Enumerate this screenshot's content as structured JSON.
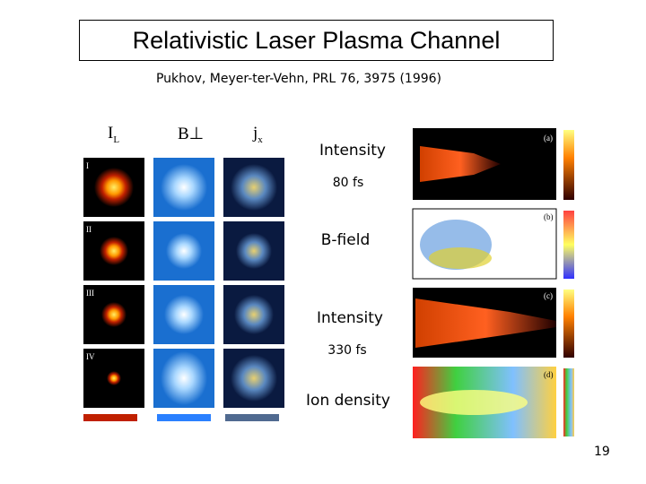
{
  "title": "Relativistic Laser Plasma Channel",
  "citation": "Pukhov, Meyer-ter-Vehn, PRL 76, 3975 (1996)",
  "column_labels": [
    {
      "main": "I",
      "sub": "L"
    },
    {
      "main": "B⊥"
    },
    {
      "main": "j",
      "sub": "x"
    }
  ],
  "annotations": [
    "Intensity",
    "80 fs",
    "B-field",
    "Intensity",
    "330 fs",
    "Ion density"
  ],
  "left_rows": [
    "I",
    "II",
    "III",
    "IV"
  ],
  "right_panels": [
    "(a)",
    "(b)",
    "(c)",
    "(d)"
  ],
  "page_number": "19"
}
